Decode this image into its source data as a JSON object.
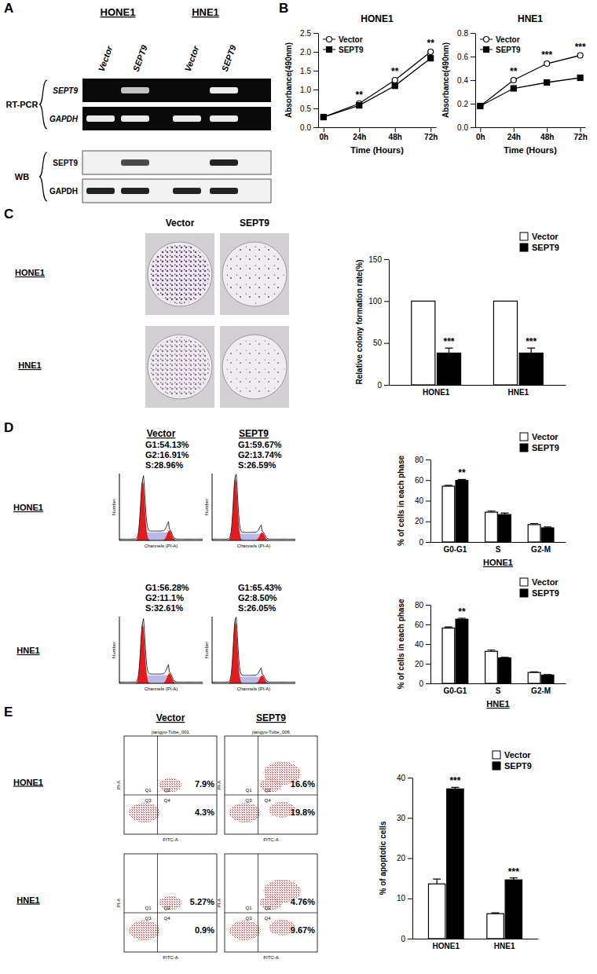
{
  "panel_labels": [
    "A",
    "B",
    "C",
    "D",
    "E"
  ],
  "blot": {
    "cell_lines": [
      "HONE1",
      "HNE1"
    ],
    "lanes": [
      "Vector",
      "SEPT9",
      "Vector",
      "SEPT9"
    ],
    "assays": [
      {
        "label": "RT-PCR",
        "rows": [
          "SEPT9",
          "GAPDH"
        ]
      },
      {
        "label": "WB",
        "rows": [
          "SEPT9",
          "GAPDH"
        ]
      }
    ]
  },
  "colony_images": {
    "columns": [
      "Vector",
      "SEPT9"
    ],
    "rows": [
      "HONE1",
      "HNE1"
    ]
  },
  "cell_cycle_histograms": {
    "columns": [
      "Vector",
      "SEPT9"
    ],
    "y_label": "Number",
    "x_label": "Channels (PI-A)",
    "rows": [
      {
        "label": "HONE1",
        "stats": [
          [
            "G1:54.13%",
            "G2:16.91%",
            "S:28.96%"
          ],
          [
            "G1:59.67%",
            "G2:13.74%",
            "S:26.59%"
          ]
        ]
      },
      {
        "label": "HNE1",
        "stats": [
          [
            "G1:56.28%",
            "G2:11.1%",
            "S:32.61%"
          ],
          [
            "G1:65.43%",
            "G2:8.50%",
            "S:26.05%"
          ]
        ]
      }
    ]
  },
  "apoptosis_plots": {
    "columns": [
      "Vector",
      "SEPT9"
    ],
    "x_label": "FITC-A",
    "y_label": "PI-A",
    "quadrants": [
      "Q1",
      "Q2",
      "Q3",
      "Q4"
    ],
    "rows": [
      {
        "label": "HONE1",
        "plots": [
          {
            "title": "jiangyu-Tube_001",
            "q2": "7.9%",
            "q4": "4.3%"
          },
          {
            "title": "jiangyu-Tube_006",
            "q2": "16.6%",
            "q4": "19.8%"
          }
        ]
      },
      {
        "label": "HNE1",
        "plots": [
          {
            "q2": "5.27%",
            "q4": "0.9%"
          },
          {
            "q2": "4.76%",
            "q4": "9.67%"
          }
        ]
      }
    ]
  },
  "chart_data": [
    {
      "type": "line",
      "title": "HONE1",
      "x_label": "Time (Hours)",
      "y_label": "Absorbance(490nm)",
      "categories": [
        "0h",
        "24h",
        "48h",
        "72h"
      ],
      "ylim": [
        0,
        2.5
      ],
      "yticks": [
        {
          "value": 0,
          "label": "0.0"
        },
        0.5,
        {
          "value": 1,
          "label": "1.0"
        },
        1.5,
        {
          "value": 2,
          "label": "2.0"
        },
        2.5
      ],
      "legend": "top-left",
      "series": [
        {
          "name": "Vector",
          "color": "#000000",
          "marker": "circle-open",
          "values": [
            0.27,
            0.63,
            1.25,
            2.0
          ],
          "annotations": [
            null,
            "**",
            "**",
            "**"
          ]
        },
        {
          "name": "SEPT9",
          "color": "#000000",
          "marker": "square",
          "values": [
            0.27,
            0.58,
            1.1,
            1.83
          ]
        }
      ]
    },
    {
      "type": "line",
      "title": "HNE1",
      "x_label": "Time (Hours)",
      "y_label": "Absorbance(490nm)",
      "categories": [
        "0h",
        "24h",
        "48h",
        "72h"
      ],
      "ylim": [
        0,
        0.8
      ],
      "yticks": [
        {
          "value": 0,
          "label": "0.0"
        },
        0.2,
        0.4,
        0.6,
        0.8
      ],
      "legend": "top-left",
      "series": [
        {
          "name": "Vector",
          "color": "#000000",
          "marker": "circle-open",
          "values": [
            0.18,
            0.4,
            0.54,
            0.61
          ],
          "annotations": [
            null,
            "**",
            "***",
            "***"
          ]
        },
        {
          "name": "SEPT9",
          "color": "#000000",
          "marker": "square",
          "values": [
            0.18,
            0.33,
            0.38,
            0.42
          ]
        }
      ]
    },
    {
      "type": "bar",
      "y_label": "Relative colony formation rate(%)",
      "categories": [
        "HONE1",
        "HNE1"
      ],
      "ylim": [
        0,
        150
      ],
      "yticks": [
        0,
        50,
        100,
        150
      ],
      "legend": "top-right",
      "series": [
        {
          "name": "Vector",
          "color": "#ffffff",
          "values": [
            100,
            100
          ]
        },
        {
          "name": "SEPT9",
          "color": "#000000",
          "values": [
            38,
            38
          ],
          "errors": [
            6,
            6
          ],
          "annotations": [
            "***",
            "***"
          ]
        }
      ]
    },
    {
      "type": "bar",
      "x_label": "HONE1",
      "y_label": "% of cells in each phase",
      "categories": [
        "G0-G1",
        "S",
        "G2-M"
      ],
      "ylim": [
        0,
        80
      ],
      "yticks": [
        0,
        20,
        40,
        60,
        80
      ],
      "legend": "top-right",
      "series": [
        {
          "name": "Vector",
          "color": "#ffffff",
          "values": [
            54.1,
            28.9,
            16.9
          ],
          "errors": [
            0.8,
            1.2,
            1.0
          ]
        },
        {
          "name": "SEPT9",
          "color": "#000000",
          "values": [
            59.7,
            26.6,
            13.7
          ],
          "errors": [
            1.0,
            1.5,
            0.8
          ],
          "annotations": [
            "**",
            null,
            null
          ]
        }
      ]
    },
    {
      "type": "bar",
      "x_label": "HNE1",
      "y_label": "% of cells in each phase",
      "categories": [
        "G0-G1",
        "S",
        "G2-M"
      ],
      "ylim": [
        0,
        80
      ],
      "yticks": [
        0,
        20,
        40,
        60,
        80
      ],
      "legend": "top-right",
      "series": [
        {
          "name": "Vector",
          "color": "#ffffff",
          "values": [
            56.3,
            32.6,
            11.1
          ],
          "errors": [
            1.2,
            1.4,
            0.6
          ]
        },
        {
          "name": "SEPT9",
          "color": "#000000",
          "values": [
            65.4,
            26.0,
            8.5
          ],
          "errors": [
            1.0,
            0.5,
            0.4
          ],
          "annotations": [
            "**",
            null,
            null
          ]
        }
      ]
    },
    {
      "type": "bar",
      "y_label": "% of apoptotic cells",
      "categories": [
        "HONE1",
        "HNE1"
      ],
      "ylim": [
        0,
        40
      ],
      "yticks": [
        0,
        10,
        20,
        30,
        40
      ],
      "legend": "top-right",
      "series": [
        {
          "name": "Vector",
          "color": "#ffffff",
          "values": [
            13.6,
            6.2
          ],
          "errors": [
            1.2,
            0.2
          ]
        },
        {
          "name": "SEPT9",
          "color": "#000000",
          "values": [
            37.2,
            14.6
          ],
          "errors": [
            0.4,
            0.5
          ],
          "annotations": [
            "***",
            "***"
          ]
        }
      ]
    }
  ]
}
